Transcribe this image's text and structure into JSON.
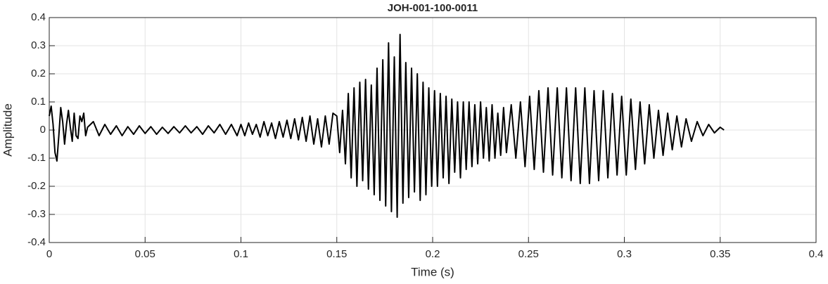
{
  "chart_data": {
    "type": "line",
    "title": "JOH-001-100-0011",
    "xlabel": "Time (s)",
    "ylabel": "Amplitude",
    "xlim": [
      0,
      0.4
    ],
    "ylim": [
      -0.4,
      0.4
    ],
    "xticks": [
      0,
      0.05,
      0.1,
      0.15,
      0.2,
      0.25,
      0.3,
      0.35,
      0.4
    ],
    "yticks": [
      -0.4,
      -0.3,
      -0.2,
      -0.1,
      0,
      0.1,
      0.2,
      0.3,
      0.4
    ],
    "grid": true,
    "x": [
      0,
      0.001,
      0.002,
      0.003,
      0.004,
      0.005,
      0.006,
      0.007,
      0.008,
      0.009,
      0.01,
      0.011,
      0.012,
      0.013,
      0.014,
      0.015,
      0.016,
      0.017,
      0.018,
      0.019,
      0.02,
      0.023,
      0.026,
      0.029,
      0.032,
      0.035,
      0.038,
      0.041,
      0.044,
      0.047,
      0.05,
      0.053,
      0.056,
      0.059,
      0.062,
      0.065,
      0.068,
      0.071,
      0.074,
      0.077,
      0.08,
      0.083,
      0.086,
      0.089,
      0.092,
      0.095,
      0.098,
      0.1,
      0.102,
      0.104,
      0.106,
      0.108,
      0.11,
      0.112,
      0.114,
      0.116,
      0.118,
      0.12,
      0.122,
      0.124,
      0.126,
      0.128,
      0.13,
      0.132,
      0.134,
      0.136,
      0.138,
      0.14,
      0.142,
      0.144,
      0.146,
      0.148,
      0.15,
      0.1515,
      0.153,
      0.1545,
      0.156,
      0.1575,
      0.159,
      0.1605,
      0.162,
      0.1635,
      0.165,
      0.1665,
      0.168,
      0.1695,
      0.171,
      0.1725,
      0.174,
      0.1755,
      0.177,
      0.1785,
      0.18,
      0.1815,
      0.183,
      0.1845,
      0.186,
      0.1875,
      0.189,
      0.1905,
      0.192,
      0.1935,
      0.195,
      0.1965,
      0.198,
      0.1995,
      0.201,
      0.2025,
      0.204,
      0.2055,
      0.207,
      0.2085,
      0.21,
      0.2115,
      0.213,
      0.2145,
      0.216,
      0.2175,
      0.219,
      0.2205,
      0.222,
      0.2235,
      0.225,
      0.2265,
      0.228,
      0.2295,
      0.231,
      0.2325,
      0.234,
      0.2355,
      0.237,
      0.2385,
      0.241,
      0.2434,
      0.2458,
      0.2482,
      0.2506,
      0.253,
      0.2554,
      0.2578,
      0.2602,
      0.2626,
      0.265,
      0.2674,
      0.2698,
      0.2722,
      0.2746,
      0.277,
      0.2794,
      0.2818,
      0.2842,
      0.2866,
      0.289,
      0.2914,
      0.2938,
      0.2962,
      0.2986,
      0.301,
      0.3034,
      0.3058,
      0.3082,
      0.3106,
      0.313,
      0.3154,
      0.3178,
      0.3202,
      0.3226,
      0.325,
      0.3274,
      0.3298,
      0.3322,
      0.335,
      0.338,
      0.341,
      0.344,
      0.347,
      0.35,
      0.352
    ],
    "series": [
      {
        "name": "Amplitude",
        "color": "#000000",
        "values": [
          0.05,
          0.085,
          0.02,
          -0.08,
          -0.11,
          -0.02,
          0.08,
          0.03,
          -0.05,
          0.02,
          0.07,
          0.01,
          -0.04,
          0.06,
          -0.02,
          -0.03,
          0.05,
          0.03,
          0.06,
          -0.02,
          0.01,
          0.03,
          -0.02,
          0.02,
          -0.015,
          0.015,
          -0.02,
          0.012,
          -0.015,
          0.015,
          -0.012,
          0.012,
          -0.015,
          0.01,
          -0.012,
          0.012,
          -0.01,
          0.015,
          -0.01,
          0.012,
          -0.015,
          0.015,
          -0.01,
          0.02,
          -0.015,
          0.02,
          -0.02,
          0.02,
          -0.02,
          0.025,
          -0.015,
          0.02,
          -0.025,
          0.03,
          -0.02,
          0.025,
          -0.03,
          0.03,
          -0.025,
          0.035,
          -0.03,
          0.04,
          -0.035,
          0.045,
          -0.04,
          0.05,
          -0.05,
          0.04,
          -0.06,
          0.05,
          -0.05,
          0.06,
          0.05,
          -0.08,
          0.07,
          -0.12,
          0.13,
          -0.17,
          0.15,
          -0.2,
          0.17,
          -0.18,
          0.18,
          -0.21,
          0.16,
          -0.23,
          0.22,
          -0.25,
          0.25,
          -0.27,
          0.31,
          -0.29,
          0.26,
          -0.31,
          0.34,
          -0.26,
          0.24,
          -0.24,
          0.22,
          -0.22,
          0.2,
          -0.25,
          0.17,
          -0.23,
          0.15,
          -0.2,
          0.14,
          -0.2,
          0.13,
          -0.17,
          0.12,
          -0.19,
          0.11,
          -0.15,
          0.1,
          -0.17,
          0.1,
          -0.14,
          0.1,
          -0.13,
          0.09,
          -0.12,
          0.1,
          -0.1,
          0.08,
          -0.11,
          0.09,
          -0.1,
          0.06,
          -0.09,
          0.08,
          -0.08,
          0.09,
          -0.1,
          0.1,
          -0.13,
          0.12,
          -0.14,
          0.14,
          -0.15,
          0.15,
          -0.16,
          0.15,
          -0.17,
          0.15,
          -0.18,
          0.15,
          -0.19,
          0.15,
          -0.19,
          0.14,
          -0.18,
          0.14,
          -0.17,
          0.13,
          -0.16,
          0.12,
          -0.16,
          0.11,
          -0.14,
          0.1,
          -0.12,
          0.09,
          -0.1,
          0.07,
          -0.09,
          0.06,
          -0.07,
          0.05,
          -0.06,
          0.04,
          -0.04,
          0.03,
          -0.02,
          0.02,
          -0.01,
          0.01,
          0
        ]
      }
    ]
  }
}
